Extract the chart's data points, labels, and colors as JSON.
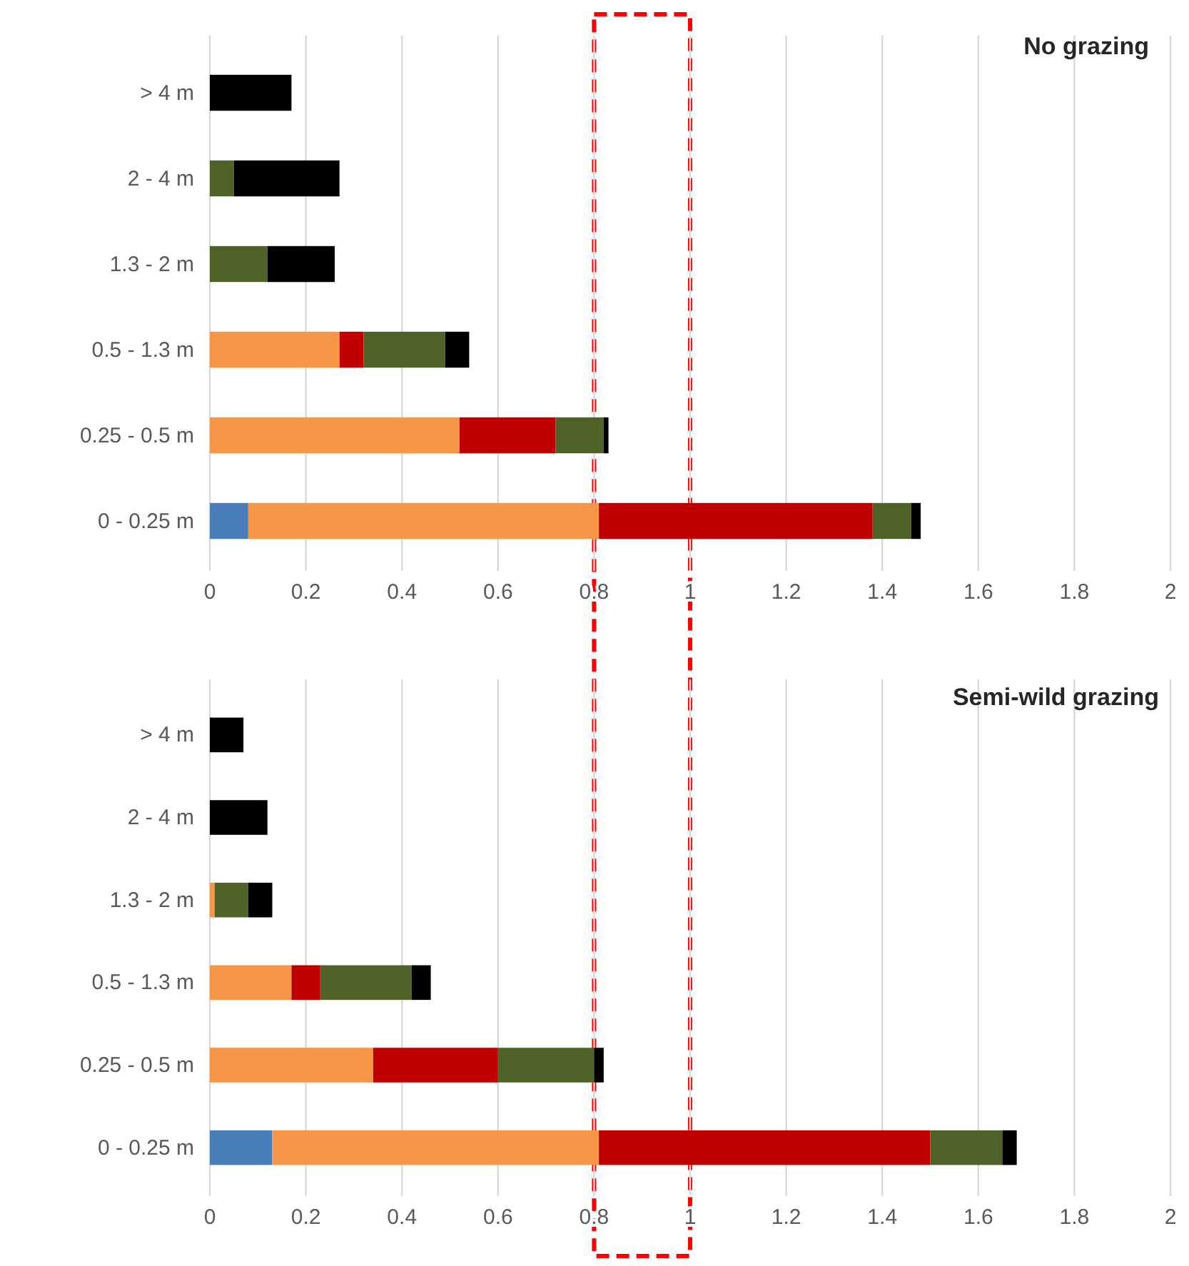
{
  "chart_data": [
    {
      "type": "bar",
      "orientation": "horizontal",
      "stacked": true,
      "title": "No grazing",
      "categories": [
        "> 4 m",
        "2 - 4 m",
        "1.3 - 2 m",
        "0.5 - 1.3 m",
        "0.25 - 0.5 m",
        "0 - 0.25 m"
      ],
      "series": [
        {
          "color": "#4a7ebb",
          "values": [
            0,
            0,
            0,
            0,
            0,
            0.08
          ]
        },
        {
          "color": "#f79646",
          "values": [
            0,
            0,
            0,
            0.27,
            0.52,
            0.73
          ]
        },
        {
          "color": "#c00000",
          "values": [
            0,
            0,
            0,
            0.05,
            0.2,
            0.57
          ]
        },
        {
          "color": "#4f6228",
          "values": [
            0,
            0.05,
            0.12,
            0.17,
            0.1,
            0.08
          ]
        },
        {
          "color": "#000000",
          "values": [
            0.17,
            0.22,
            0.14,
            0.05,
            0.01,
            0.02
          ]
        }
      ],
      "xlim": [
        0,
        2
      ],
      "xticks": [
        0,
        0.2,
        0.4,
        0.6,
        0.8,
        1,
        1.2,
        1.4,
        1.6,
        1.8,
        2
      ],
      "grid": "x"
    },
    {
      "type": "bar",
      "orientation": "horizontal",
      "stacked": true,
      "title": "Semi-wild grazing",
      "categories": [
        "> 4 m",
        "2 - 4 m",
        "1.3 - 2 m",
        "0.5 - 1.3 m",
        "0.25 - 0.5 m",
        "0 - 0.25 m"
      ],
      "series": [
        {
          "color": "#4a7ebb",
          "values": [
            0,
            0,
            0,
            0,
            0,
            0.13
          ]
        },
        {
          "color": "#f79646",
          "values": [
            0,
            0,
            0.01,
            0.17,
            0.34,
            0.68
          ]
        },
        {
          "color": "#c00000",
          "values": [
            0,
            0,
            0,
            0.06,
            0.26,
            0.69
          ]
        },
        {
          "color": "#4f6228",
          "values": [
            0,
            0,
            0.07,
            0.19,
            0.2,
            0.15
          ]
        },
        {
          "color": "#000000",
          "values": [
            0.07,
            0.12,
            0.05,
            0.04,
            0.02,
            0.03
          ]
        }
      ],
      "xlim": [
        0,
        2
      ],
      "xticks": [
        0,
        0.2,
        0.4,
        0.6,
        0.8,
        1,
        1.2,
        1.4,
        1.6,
        1.8,
        2
      ],
      "grid": "x"
    }
  ]
}
